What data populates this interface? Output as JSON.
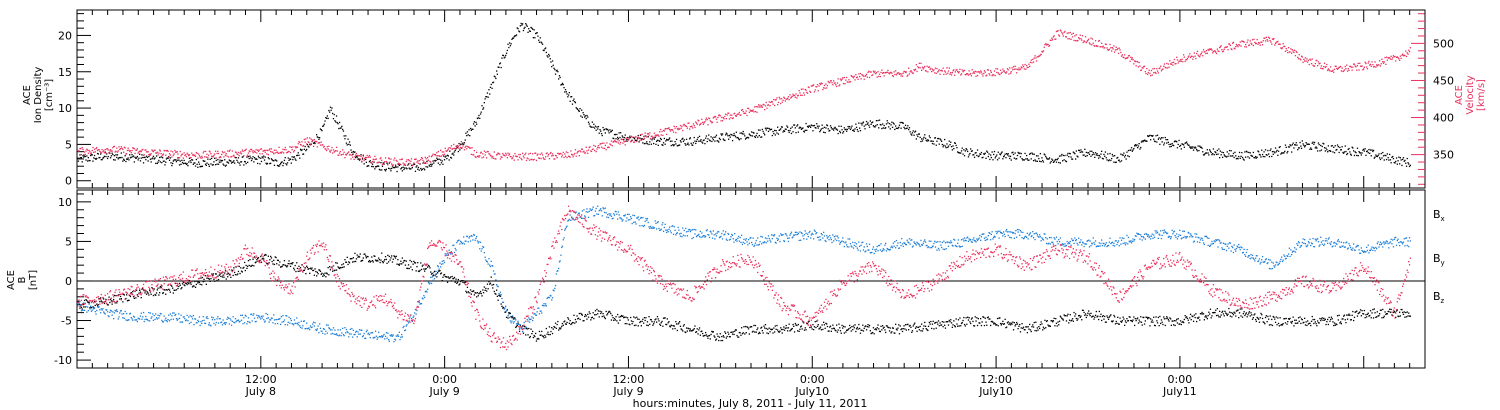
{
  "chart_data": [
    {
      "type": "scatter",
      "panel": "plasma",
      "ylabel_left": [
        "ACE",
        "Ion Density",
        "[cm⁻³]"
      ],
      "ylabel_right": [
        "ACE",
        "Velocity",
        "[km/s]"
      ],
      "xlim_hours": [
        0,
        88
      ],
      "ylim_left": [
        -1,
        23.5
      ],
      "ylim_right": [
        305,
        545
      ],
      "yticks_left": [
        "0",
        "5",
        "10",
        "15",
        "20"
      ],
      "yticks_left_values": [
        0,
        5,
        10,
        15,
        20
      ],
      "yticks_right": [
        "350",
        "400",
        "450",
        "500"
      ],
      "yticks_right_values": [
        350,
        400,
        450,
        500
      ],
      "colors": {
        "density": "#000000",
        "velocity": "#e8305c"
      },
      "series": [
        {
          "key": "density",
          "axis": "left",
          "x": [
            0,
            2,
            4,
            6,
            8,
            10,
            12,
            13,
            14,
            15,
            16,
            16.5,
            17,
            18,
            19,
            20,
            22,
            24,
            25,
            26,
            27,
            28,
            28.5,
            29,
            30,
            31,
            32,
            33,
            34,
            36,
            38,
            40,
            42,
            44,
            46,
            48,
            50,
            52,
            54,
            55,
            56,
            57,
            58,
            60,
            62,
            64,
            66,
            68,
            70,
            72,
            74,
            76,
            78,
            80,
            82,
            84,
            86,
            87
          ],
          "y": [
            3,
            3.5,
            3.2,
            2.8,
            2.5,
            2.7,
            3,
            2.5,
            3,
            4.5,
            7,
            10,
            8,
            4,
            2.5,
            2,
            1.8,
            3,
            5,
            8,
            13,
            18,
            20,
            21.5,
            20,
            16,
            12,
            9,
            7,
            6,
            5.5,
            5.5,
            6,
            6.5,
            7,
            7.5,
            7,
            8,
            7.5,
            6,
            5.5,
            5,
            4,
            3.5,
            3.5,
            3,
            4,
            3,
            6,
            5,
            4,
            3.5,
            4,
            5,
            4.5,
            4,
            3,
            2.5
          ]
        },
        {
          "key": "velocity",
          "axis": "right",
          "x": [
            0,
            2,
            4,
            6,
            8,
            10,
            12,
            14,
            15,
            16,
            17,
            18,
            20,
            22,
            23,
            24,
            25,
            26,
            28,
            30,
            32,
            34,
            36,
            38,
            40,
            42,
            44,
            46,
            48,
            50,
            52,
            54,
            55,
            56,
            58,
            60,
            62,
            64,
            66,
            68,
            70,
            71,
            72,
            74,
            76,
            78,
            80,
            82,
            84,
            86,
            87
          ],
          "y": [
            355,
            358,
            355,
            352,
            350,
            352,
            355,
            358,
            370,
            362,
            355,
            348,
            342,
            340,
            345,
            355,
            365,
            352,
            348,
            348,
            350,
            360,
            370,
            380,
            390,
            400,
            410,
            425,
            440,
            450,
            460,
            460,
            470,
            465,
            460,
            462,
            468,
            515,
            505,
            490,
            460,
            470,
            480,
            490,
            500,
            505,
            480,
            465,
            470,
            480,
            490
          ]
        }
      ]
    },
    {
      "type": "scatter",
      "panel": "magnetic-field",
      "ylabel_left": [
        "ACE",
        "B",
        "[nT]"
      ],
      "xlim_hours": [
        0,
        88
      ],
      "ylim": [
        -11,
        11.5
      ],
      "yticks": [
        "-10",
        "-5",
        "0",
        "5",
        "10"
      ],
      "yticks_values": [
        -10,
        -5,
        0,
        5,
        10
      ],
      "zero_line": true,
      "legend": [
        "Bx",
        "By",
        "Bz"
      ],
      "legend_placement": "right",
      "colors": {
        "Bx": "#000000",
        "By": "#1f7fd8",
        "Bz": "#e8305c"
      },
      "series": [
        {
          "key": "Bx",
          "x": [
            0,
            2,
            4,
            6,
            8,
            10,
            11,
            12,
            14,
            16,
            18,
            20,
            22,
            23,
            24,
            25,
            26,
            27,
            28,
            29,
            30,
            31,
            32,
            34,
            36,
            38,
            40,
            42,
            44,
            46,
            48,
            50,
            52,
            54,
            56,
            58,
            60,
            62,
            64,
            66,
            68,
            70,
            72,
            74,
            76,
            78,
            80,
            82,
            84,
            86,
            87
          ],
          "y": [
            -3,
            -2.5,
            -1.5,
            -1,
            0,
            1,
            2,
            3,
            2,
            1,
            3,
            3,
            2,
            1.5,
            0.5,
            0,
            -2,
            0,
            -4,
            -6,
            -7,
            -6,
            -5,
            -4,
            -5,
            -5,
            -6,
            -7,
            -6,
            -6,
            -5.5,
            -6,
            -6,
            -6,
            -5.5,
            -5,
            -5,
            -6,
            -5,
            -4,
            -5,
            -5,
            -5,
            -4,
            -4,
            -5,
            -5,
            -5,
            -4,
            -4,
            -4
          ]
        },
        {
          "key": "By",
          "x": [
            0,
            2,
            4,
            6,
            8,
            10,
            12,
            14,
            16,
            18,
            20,
            21,
            22,
            23,
            24,
            25,
            26,
            27,
            28,
            29,
            30,
            31,
            32,
            34,
            36,
            38,
            40,
            42,
            44,
            46,
            48,
            50,
            52,
            54,
            56,
            58,
            60,
            62,
            64,
            66,
            68,
            70,
            72,
            74,
            76,
            78,
            80,
            82,
            84,
            86,
            87
          ],
          "y": [
            -3,
            -4,
            -4.5,
            -4.5,
            -5,
            -5,
            -4.5,
            -5,
            -6,
            -6.5,
            -7,
            -7,
            -4,
            0,
            3,
            5,
            5.5,
            2,
            -4,
            -6,
            -4,
            -2,
            8,
            9,
            8,
            7,
            6,
            6,
            5,
            5.5,
            6,
            5,
            4,
            5,
            4.5,
            5,
            6,
            6,
            5,
            5,
            5,
            6,
            6,
            5,
            4,
            2,
            5,
            5,
            4,
            5,
            5
          ]
        },
        {
          "key": "Bz",
          "x": [
            0,
            2,
            4,
            6,
            8,
            10,
            11,
            12,
            13,
            14,
            15,
            16,
            17,
            18,
            19,
            20,
            21,
            22,
            23,
            24,
            25,
            26,
            27,
            28,
            29,
            30,
            31,
            32,
            34,
            36,
            38,
            40,
            42,
            44,
            46,
            48,
            50,
            52,
            54,
            56,
            58,
            60,
            62,
            64,
            66,
            68,
            70,
            72,
            74,
            76,
            78,
            80,
            82,
            84,
            86,
            87
          ],
          "y": [
            -2.5,
            -2,
            -1,
            0,
            1,
            1.5,
            4,
            3,
            0,
            -1,
            3,
            5,
            0,
            -2,
            -3,
            -2,
            -4,
            -5,
            5,
            4,
            2,
            -4,
            -7,
            -8,
            -6,
            -2,
            4,
            9,
            6,
            4,
            0,
            -2,
            2,
            3,
            -3,
            -5,
            0,
            2,
            -2,
            0,
            3,
            4,
            2,
            4,
            3,
            -2,
            2,
            3,
            -1,
            -3,
            -2,
            0,
            -1,
            2,
            -4,
            3
          ]
        }
      ]
    }
  ],
  "x_axis": {
    "ticks": [
      {
        "hour": 12,
        "time": "12:00",
        "date": "July 8"
      },
      {
        "hour": 24,
        "time": "0:00",
        "date": "July 9"
      },
      {
        "hour": 36,
        "time": "12:00",
        "date": "July 9"
      },
      {
        "hour": 48,
        "time": "0:00",
        "date": "July10"
      },
      {
        "hour": 60,
        "time": "12:00",
        "date": "July10"
      },
      {
        "hour": 72,
        "time": "0:00",
        "date": "July11"
      }
    ],
    "xlabel": "hours:minutes, July  8, 2011 - July 11, 2011"
  }
}
